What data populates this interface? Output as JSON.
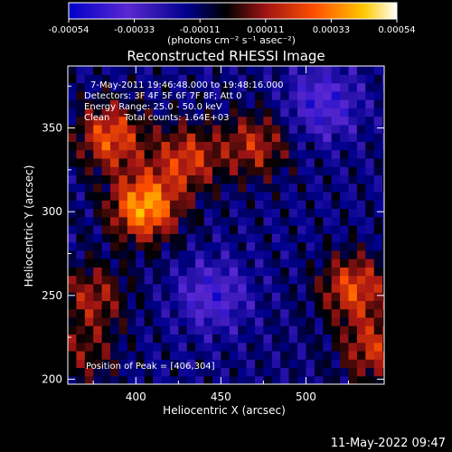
{
  "chart_data": {
    "type": "heatmap",
    "title": "Reconstructed RHESSI Image",
    "xlabel": "Heliocentric X (arcsec)",
    "ylabel": "Heliocentric Y (arcsec)",
    "xlim": [
      360,
      546
    ],
    "ylim": [
      197,
      387
    ],
    "xticks": [
      400,
      450,
      500
    ],
    "yticks": [
      200,
      250,
      300,
      350
    ],
    "colorbar": {
      "range": [
        -0.00054,
        0.00054
      ],
      "ticks": [
        "-0.00054",
        "-0.00033",
        "-0.00011",
        "0.00011",
        "0.00033",
        "0.00054"
      ],
      "units": "(photons cm⁻² s⁻¹ asec⁻²)",
      "colormap": [
        "#0000c8",
        "#5a28d2",
        "#00008c",
        "#000000",
        "#a01414",
        "#ff5000",
        "#ffc800",
        "#ffffff"
      ]
    },
    "annotations": [
      "7-May-2011 19:46:48.000 to 19:48:16.000",
      "Detectors: 3F 4F 5F 6F 7F 8F; Att 0",
      "Energy Range: 25.0 - 50.0 keV",
      "Clean     Total counts: 1.64E+03"
    ],
    "peak_label": "Position of Peak = [406,304]",
    "peak": [
      406,
      304
    ],
    "hot_regions": [
      {
        "x": 405,
        "y": 303,
        "value": 0.00052
      },
      {
        "x": 385,
        "y": 345,
        "value": 0.00038
      },
      {
        "x": 430,
        "y": 332,
        "value": 0.00032
      },
      {
        "x": 470,
        "y": 340,
        "value": 0.00028
      },
      {
        "x": 528,
        "y": 255,
        "value": 0.00036
      },
      {
        "x": 540,
        "y": 218,
        "value": 0.0003
      },
      {
        "x": 375,
        "y": 250,
        "value": 0.00025
      },
      {
        "x": 370,
        "y": 215,
        "value": 0.00018
      },
      {
        "x": 445,
        "y": 250,
        "value": -0.00025
      },
      {
        "x": 510,
        "y": 365,
        "value": -0.00028
      }
    ]
  },
  "footer": {
    "date": "11-May-2022 09:47"
  }
}
